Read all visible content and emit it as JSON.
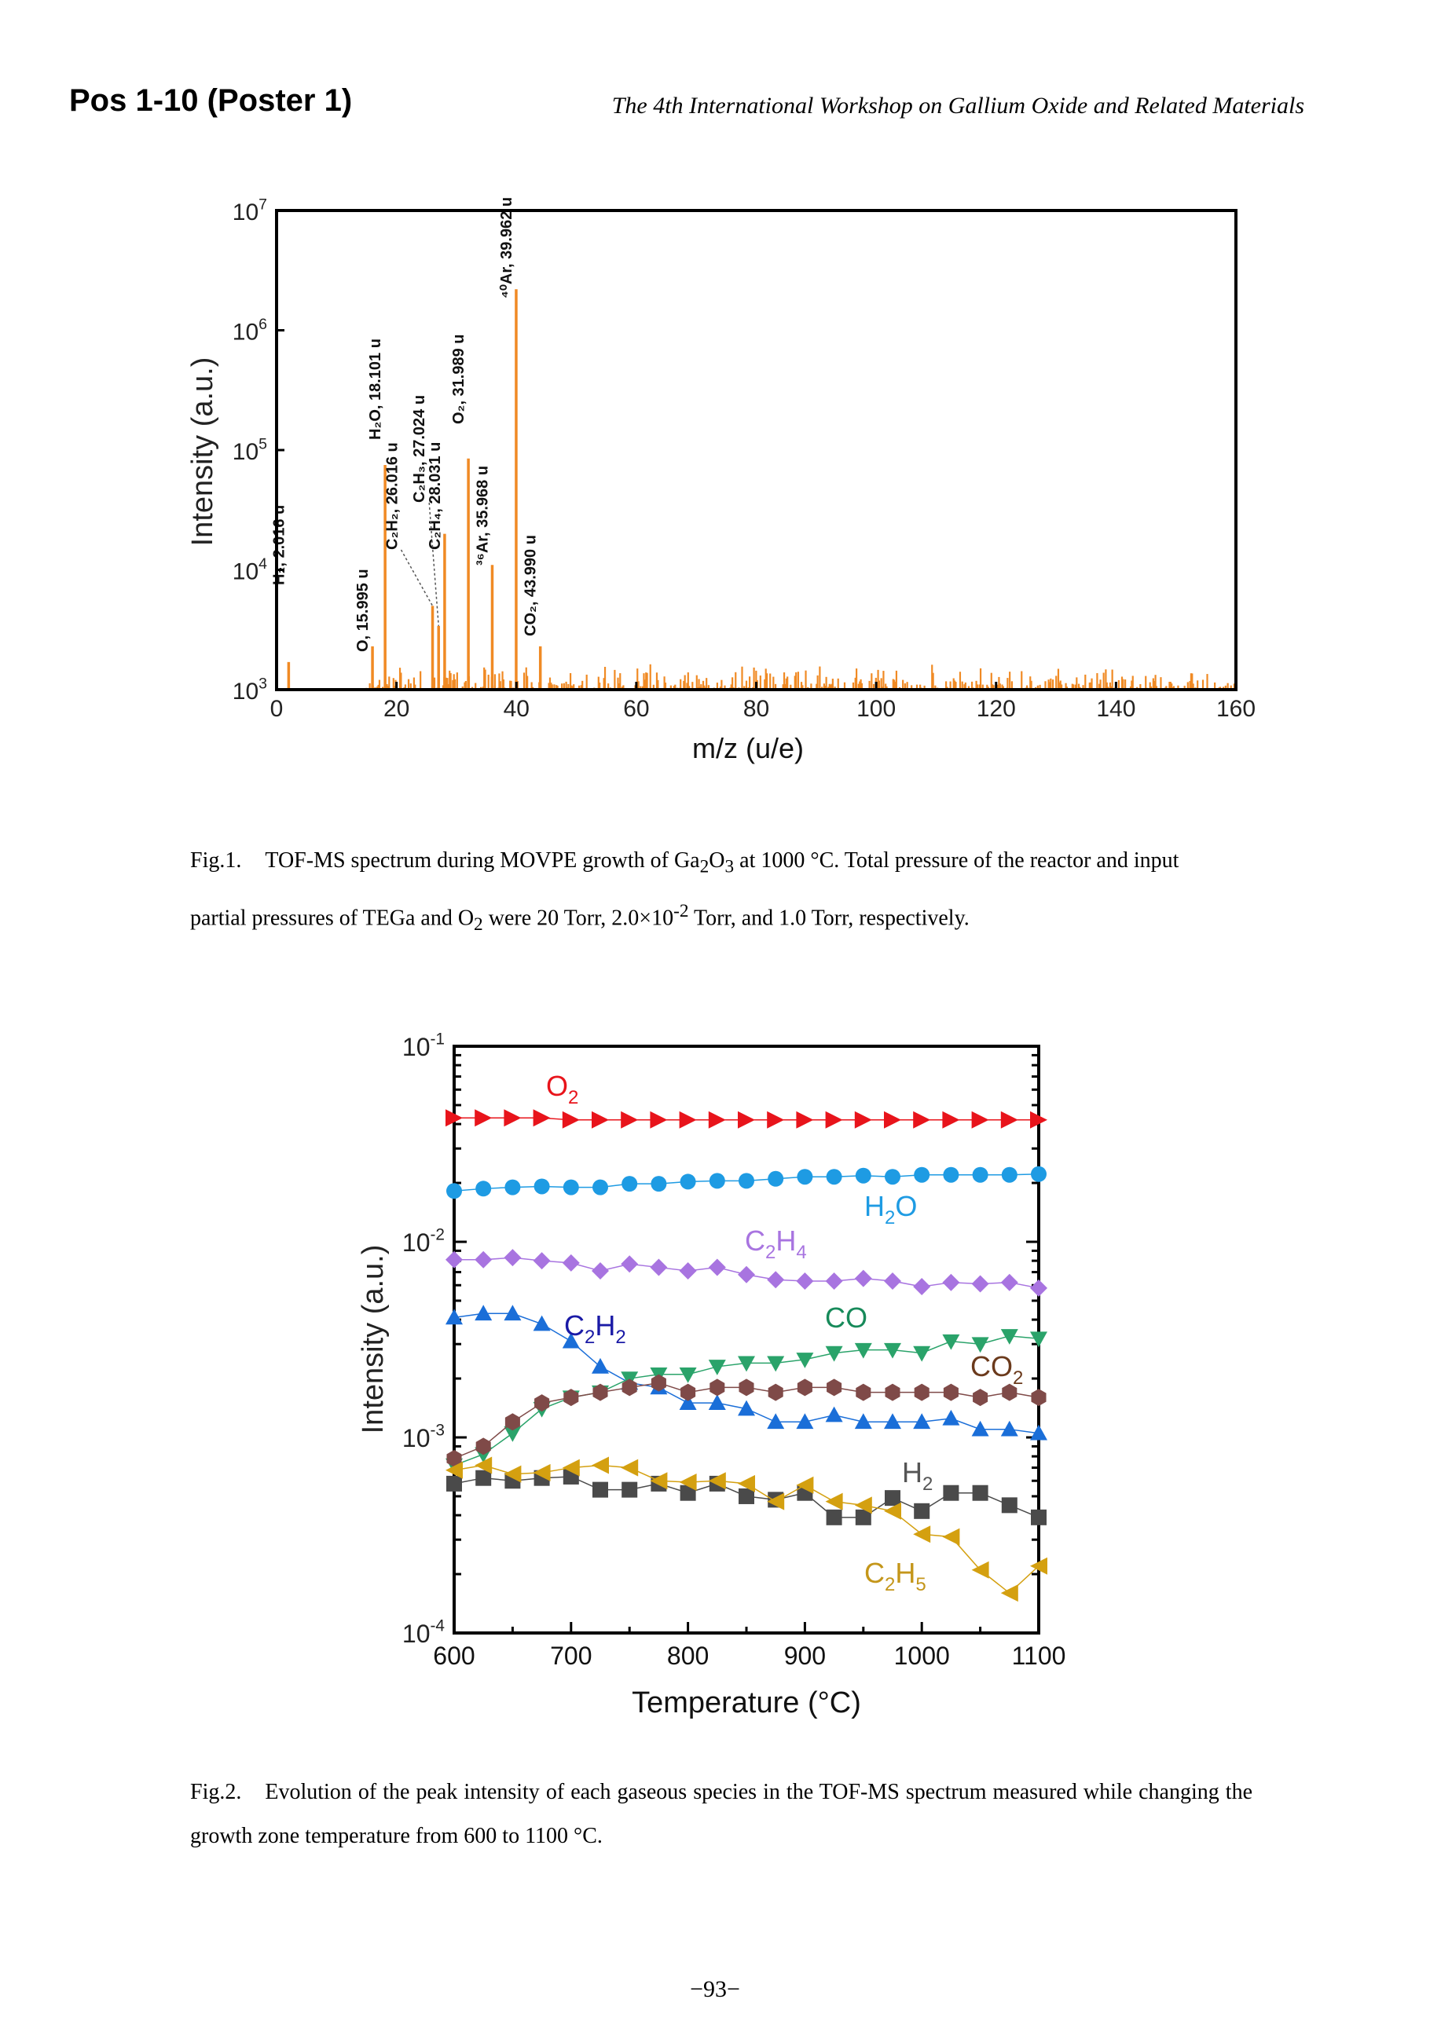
{
  "header": {
    "left": "Pos 1-10 (Poster 1)",
    "right": "The 4th International Workshop on Gallium Oxide and Related Materials"
  },
  "fig1_caption": {
    "label": "Fig.1.",
    "line1_a": "TOF-MS spectrum during MOVPE growth of Ga",
    "line1_sub1": "2",
    "line1_b": "O",
    "line1_sub2": "3",
    "line1_c": " at 1000 °C. Total pressure of the reactor and input",
    "line2_a": "partial pressures of TEGa and O",
    "line2_sub": "2",
    "line2_b": " were 20 Torr, 2.0×10",
    "line2_sup": "-2",
    "line2_c": " Torr, and 1.0 Torr, respectively."
  },
  "fig2_caption": {
    "label": "Fig.2.",
    "text": "Evolution of the peak intensity of each gaseous species in the TOF-MS spectrum measured while changing the growth zone temperature from 600 to 1100 °C."
  },
  "footer": {
    "page": "−93−"
  },
  "chart_data": [
    {
      "type": "bar",
      "title": "",
      "xlabel": "m/z (u/e)",
      "ylabel": "Intensity (a.u.)",
      "xlim": [
        0,
        160
      ],
      "ylim": [
        1000,
        10000000
      ],
      "yscale": "log",
      "xticks": [
        "0",
        "20",
        "40",
        "60",
        "80",
        "100",
        "120",
        "140",
        "160"
      ],
      "yticks": [
        {
          "base": "10",
          "exp": "3"
        },
        {
          "base": "10",
          "exp": "4"
        },
        {
          "base": "10",
          "exp": "5"
        },
        {
          "base": "10",
          "exp": "6"
        },
        {
          "base": "10",
          "exp": "7"
        }
      ],
      "color": "#f08a24",
      "peaks": [
        {
          "x": 2.016,
          "y": 1700,
          "label": "H₂, 2.016 u"
        },
        {
          "x": 15.995,
          "y": 2300,
          "label": "O, 15.995 u"
        },
        {
          "x": 18.101,
          "y": 75000,
          "label": "H₂O, 18.101 u"
        },
        {
          "x": 26.016,
          "y": 5000,
          "label": "C₂H₂, 26.016 u"
        },
        {
          "x": 27.024,
          "y": 3400,
          "label": "C₂H₃, 27.024 u"
        },
        {
          "x": 28.031,
          "y": 20000,
          "label": "C₂H₄, 28.031 u"
        },
        {
          "x": 31.989,
          "y": 85000,
          "label": "O₂, 31.989 u"
        },
        {
          "x": 35.968,
          "y": 11000,
          "label": "³⁶Ar, 35.968 u"
        },
        {
          "x": 39.962,
          "y": 2200000,
          "label": "⁴⁰Ar, 39.962 u"
        },
        {
          "x": 43.99,
          "y": 2300,
          "label": "CO₂, 43.990 u"
        }
      ],
      "noise_floor_note": "dense low-level noise peaks ~1.0e3–1.6e3 across m/z 15–160"
    },
    {
      "type": "line",
      "title": "",
      "xlabel": "Temperature (°C)",
      "ylabel": "Intensity (a.u.)",
      "xlim": [
        600,
        1100
      ],
      "ylim": [
        0.0001,
        0.1
      ],
      "yscale": "log",
      "xticks": [
        "600",
        "700",
        "800",
        "900",
        "1000",
        "1100"
      ],
      "yticks": [
        {
          "base": "10",
          "exp": "-4"
        },
        {
          "base": "10",
          "exp": "-3"
        },
        {
          "base": "10",
          "exp": "-2"
        },
        {
          "base": "10",
          "exp": "-1"
        }
      ],
      "x": [
        600,
        625,
        650,
        675,
        700,
        725,
        750,
        775,
        800,
        825,
        850,
        875,
        900,
        925,
        950,
        975,
        1000,
        1025,
        1050,
        1075,
        1100
      ],
      "series": [
        {
          "name": "O2",
          "label_main": "O",
          "label_sub": "2",
          "color": "#e8141b",
          "marker": "triangle-right",
          "values": [
            0.043,
            0.043,
            0.043,
            0.043,
            0.042,
            0.042,
            0.042,
            0.042,
            0.042,
            0.042,
            0.042,
            0.042,
            0.042,
            0.042,
            0.042,
            0.042,
            0.042,
            0.042,
            0.042,
            0.042,
            0.042
          ]
        },
        {
          "name": "H2O",
          "label_main": "H",
          "label_sub": "2",
          "label_tail": "O",
          "color": "#1e9be3",
          "marker": "circle",
          "values": [
            0.0182,
            0.0187,
            0.019,
            0.0192,
            0.019,
            0.019,
            0.0198,
            0.0198,
            0.0203,
            0.0205,
            0.0205,
            0.021,
            0.0215,
            0.0215,
            0.0218,
            0.0215,
            0.022,
            0.022,
            0.022,
            0.022,
            0.0222
          ]
        },
        {
          "name": "C2H4",
          "label_main": "C",
          "label_sub": "2",
          "label_tail": "H",
          "label_sub2": "4",
          "color": "#a874e0",
          "marker": "diamond",
          "values": [
            0.0081,
            0.0081,
            0.0083,
            0.008,
            0.0078,
            0.0071,
            0.0077,
            0.0074,
            0.0071,
            0.0074,
            0.0068,
            0.0064,
            0.0063,
            0.0063,
            0.0065,
            0.0063,
            0.0059,
            0.0062,
            0.0061,
            0.0062,
            0.0058
          ]
        },
        {
          "name": "C2H2",
          "label_main": "C",
          "label_sub": "2",
          "label_tail": "H",
          "label_sub2": "2",
          "color": "#1a6ed8",
          "label_color": "#1a1aa6",
          "marker": "triangle-up",
          "values": [
            0.0041,
            0.0043,
            0.0043,
            0.0038,
            0.0031,
            0.0023,
            0.0019,
            0.0018,
            0.0015,
            0.0015,
            0.0014,
            0.0012,
            0.0012,
            0.0013,
            0.0012,
            0.0012,
            0.0012,
            0.00125,
            0.0011,
            0.0011,
            0.00105
          ]
        },
        {
          "name": "CO",
          "label_main": "CO",
          "color": "#2aa36a",
          "label_color": "#178a5a",
          "marker": "triangle-down",
          "values": [
            0.00072,
            0.00082,
            0.00105,
            0.0014,
            0.0016,
            0.0017,
            0.002,
            0.0021,
            0.0021,
            0.0023,
            0.0024,
            0.0024,
            0.0025,
            0.0027,
            0.0028,
            0.0028,
            0.0027,
            0.0031,
            0.003,
            0.0033,
            0.0032
          ]
        },
        {
          "name": "CO2",
          "label_main": "CO",
          "label_sub": "2",
          "color": "#7f4a48",
          "label_color": "#6b3a1c",
          "marker": "hexagon",
          "values": [
            0.00078,
            0.0009,
            0.0012,
            0.0015,
            0.0016,
            0.0017,
            0.0018,
            0.0019,
            0.0017,
            0.0018,
            0.0018,
            0.0017,
            0.0018,
            0.0018,
            0.0017,
            0.0017,
            0.0017,
            0.0017,
            0.0016,
            0.0017,
            0.0016
          ]
        },
        {
          "name": "H2",
          "label_main": "H",
          "label_sub": "2",
          "color": "#4a4a4a",
          "label_color": "#555555",
          "marker": "square",
          "values": [
            0.00058,
            0.00062,
            0.0006,
            0.00062,
            0.00063,
            0.00054,
            0.00054,
            0.00058,
            0.00052,
            0.00058,
            0.0005,
            0.00048,
            0.00052,
            0.00039,
            0.00039,
            0.00049,
            0.00042,
            0.00052,
            0.00052,
            0.00045,
            0.00039
          ]
        },
        {
          "name": "C2H5",
          "label_main": "C",
          "label_sub": "2",
          "label_tail": "H",
          "label_sub2": "5",
          "color": "#d4a010",
          "label_color": "#c4961a",
          "marker": "triangle-left",
          "values": [
            0.00068,
            0.00072,
            0.00065,
            0.00066,
            0.0007,
            0.00072,
            0.0007,
            0.0006,
            0.00059,
            0.0006,
            0.00058,
            0.00047,
            0.00057,
            0.00047,
            0.00045,
            0.00042,
            0.00032,
            0.00031,
            0.00021,
            0.00016,
            0.00022
          ]
        }
      ]
    }
  ]
}
